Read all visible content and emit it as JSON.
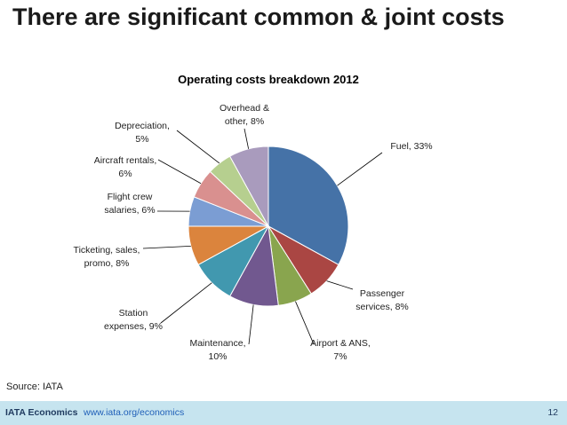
{
  "slide": {
    "title": "There are significant common & joint costs",
    "source": "Source: IATA"
  },
  "footer": {
    "org": "IATA Economics",
    "link": "www.iata.org/economics",
    "page_number": "12"
  },
  "chart_data": {
    "type": "pie",
    "title": "Operating costs breakdown 2012",
    "slices": [
      {
        "label": "Fuel",
        "value": 33,
        "label_lines": [
          "Fuel, 33%"
        ],
        "color": "#4572a7"
      },
      {
        "label": "Passenger services",
        "value": 8,
        "label_lines": [
          "Passenger",
          "services, 8%"
        ],
        "color": "#aa4643"
      },
      {
        "label": "Airport & ANS",
        "value": 7,
        "label_lines": [
          "Airport & ANS,",
          "7%"
        ],
        "color": "#89a54e"
      },
      {
        "label": "Maintenance",
        "value": 10,
        "label_lines": [
          "Maintenance,",
          "10%"
        ],
        "color": "#71588f"
      },
      {
        "label": "Station expenses",
        "value": 9,
        "label_lines": [
          "Station",
          "expenses, 9%"
        ],
        "color": "#4198af"
      },
      {
        "label": "Ticketing, sales, promo",
        "value": 8,
        "label_lines": [
          "Ticketing, sales,",
          "promo, 8%"
        ],
        "color": "#db843d"
      },
      {
        "label": "Flight crew salaries",
        "value": 6,
        "label_lines": [
          "Flight crew",
          "salaries, 6%"
        ],
        "color": "#7b9dd3"
      },
      {
        "label": "Aircraft rentals",
        "value": 6,
        "label_lines": [
          "Aircraft rentals,",
          "6%"
        ],
        "color": "#d9908f"
      },
      {
        "label": "Depreciation",
        "value": 5,
        "label_lines": [
          "Depreciation,",
          "5%"
        ],
        "color": "#b6cf8f"
      },
      {
        "label": "Overhead & other",
        "value": 8,
        "label_lines": [
          "Overhead &",
          "other, 8%"
        ],
        "color": "#a99bbd"
      }
    ]
  }
}
